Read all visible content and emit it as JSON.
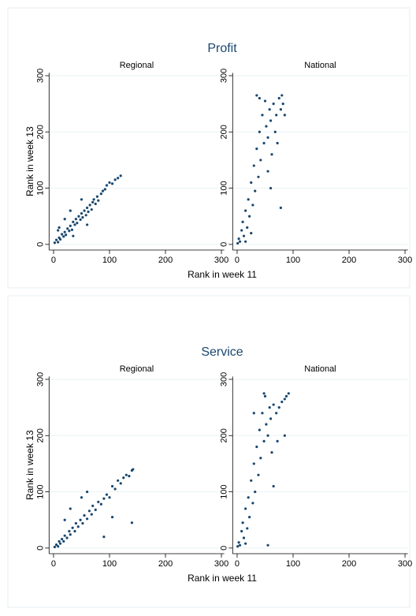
{
  "chart_data": [
    {
      "type": "scatter",
      "title": "Profit",
      "xlabel": "Rank in week 11",
      "ylabel": "Rank in week 13",
      "color": "#1a476f",
      "xlim": [
        -8,
        305
      ],
      "ylim": [
        -10,
        305
      ],
      "xticks": [
        0,
        100,
        200,
        300
      ],
      "yticks": [
        0,
        100,
        200,
        300
      ],
      "grid": true,
      "panels": [
        {
          "title": "Regional",
          "x": [
            2,
            5,
            8,
            10,
            12,
            15,
            18,
            20,
            22,
            25,
            28,
            30,
            33,
            35,
            38,
            40,
            42,
            45,
            48,
            50,
            52,
            55,
            58,
            60,
            62,
            65,
            68,
            70,
            72,
            75,
            78,
            80,
            85,
            88,
            92,
            95,
            100,
            105,
            110,
            115,
            120,
            20,
            35,
            60,
            10,
            50,
            8,
            30
          ],
          "y": [
            3,
            8,
            4,
            12,
            9,
            18,
            14,
            22,
            17,
            28,
            24,
            33,
            26,
            40,
            35,
            45,
            38,
            50,
            44,
            55,
            48,
            60,
            52,
            65,
            58,
            70,
            62,
            75,
            80,
            72,
            85,
            78,
            90,
            95,
            98,
            105,
            110,
            108,
            115,
            118,
            122,
            45,
            15,
            35,
            30,
            80,
            25,
            60
          ]
        },
        {
          "title": "National",
          "x": [
            1,
            3,
            5,
            8,
            10,
            12,
            15,
            18,
            20,
            22,
            25,
            28,
            30,
            32,
            35,
            38,
            40,
            42,
            45,
            48,
            50,
            52,
            55,
            58,
            60,
            62,
            65,
            68,
            70,
            72,
            75,
            78,
            80,
            82,
            85,
            78,
            35,
            40,
            55,
            15,
            25,
            60
          ],
          "y": [
            2,
            10,
            5,
            25,
            40,
            15,
            60,
            30,
            80,
            50,
            110,
            70,
            140,
            95,
            170,
            120,
            200,
            150,
            230,
            180,
            255,
            210,
            190,
            240,
            220,
            160,
            250,
            200,
            230,
            180,
            260,
            240,
            265,
            250,
            230,
            65,
            265,
            260,
            130,
            5,
            20,
            100
          ]
        }
      ]
    },
    {
      "type": "scatter",
      "title": "Service",
      "xlabel": "Rank in week 11",
      "ylabel": "Rank in week 13",
      "color": "#1a476f",
      "xlim": [
        -8,
        305
      ],
      "ylim": [
        -10,
        305
      ],
      "xticks": [
        0,
        100,
        200,
        300
      ],
      "yticks": [
        0,
        100,
        200,
        300
      ],
      "grid": true,
      "panels": [
        {
          "title": "Regional",
          "x": [
            2,
            5,
            8,
            10,
            12,
            15,
            18,
            20,
            24,
            28,
            30,
            34,
            38,
            40,
            44,
            48,
            52,
            55,
            60,
            64,
            68,
            70,
            75,
            80,
            85,
            90,
            95,
            100,
            105,
            110,
            115,
            120,
            125,
            130,
            135,
            140,
            142,
            30,
            50,
            105,
            140,
            90,
            20,
            60
          ],
          "y": [
            2,
            6,
            3,
            12,
            8,
            16,
            12,
            22,
            18,
            30,
            24,
            36,
            30,
            44,
            38,
            50,
            44,
            58,
            52,
            66,
            60,
            75,
            68,
            82,
            78,
            88,
            95,
            90,
            110,
            105,
            120,
            115,
            125,
            130,
            128,
            138,
            140,
            70,
            90,
            55,
            45,
            20,
            50,
            100
          ]
        },
        {
          "title": "National",
          "x": [
            1,
            3,
            5,
            8,
            10,
            12,
            15,
            18,
            20,
            22,
            25,
            28,
            30,
            32,
            35,
            38,
            40,
            42,
            45,
            48,
            50,
            52,
            55,
            58,
            60,
            62,
            65,
            70,
            72,
            75,
            80,
            85,
            88,
            92,
            55,
            48,
            30,
            65,
            85,
            15
          ],
          "y": [
            3,
            10,
            5,
            30,
            45,
            18,
            70,
            35,
            90,
            55,
            120,
            80,
            150,
            100,
            180,
            130,
            210,
            160,
            240,
            190,
            270,
            220,
            200,
            250,
            230,
            170,
            255,
            240,
            190,
            250,
            260,
            265,
            270,
            275,
            5,
            275,
            240,
            110,
            200,
            8
          ]
        }
      ]
    }
  ]
}
